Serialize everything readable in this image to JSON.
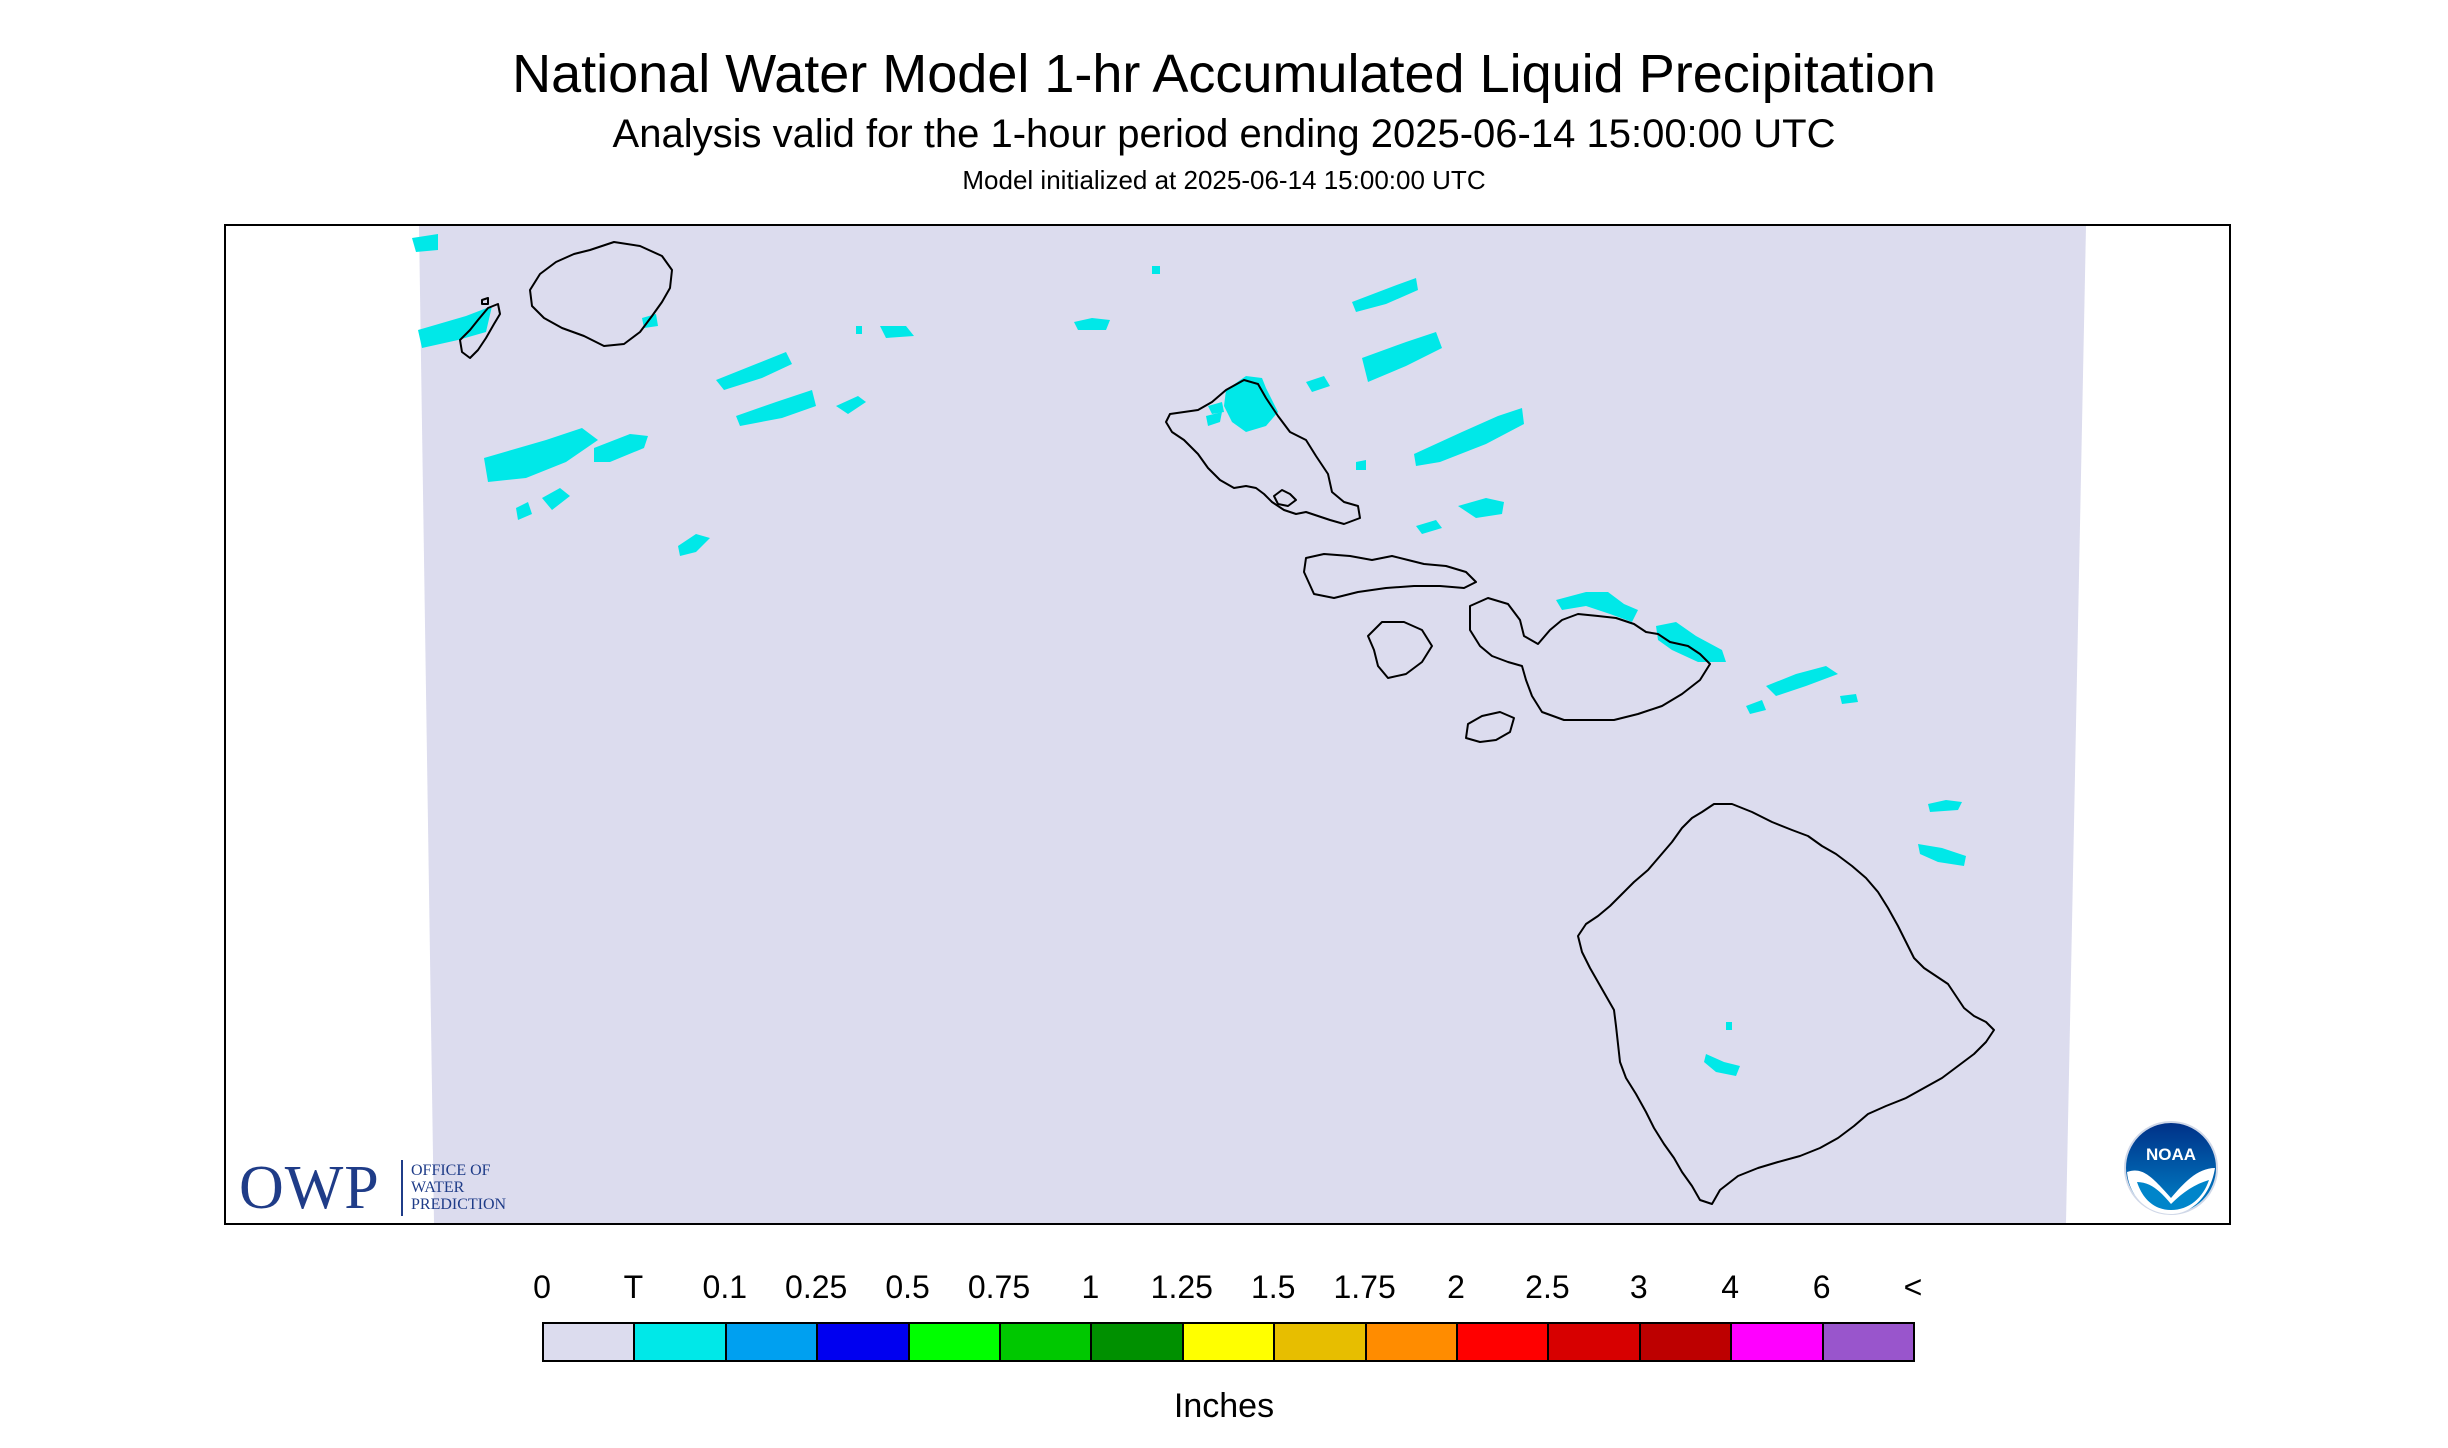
{
  "header": {
    "title": "National Water Model 1-hr Accumulated Liquid Precipitation",
    "subtitle": "Analysis valid for the 1-hour period ending 2025-06-14 15:00:00 UTC",
    "init_line": "Model initialized at 2025-06-14 15:00:00 UTC"
  },
  "logos": {
    "owp_text": "OWP",
    "owp_lines": [
      "OFFICE OF",
      "WATER",
      "PREDICTION"
    ],
    "noaa_text": "NOAA"
  },
  "colors": {
    "map_background": "#dcdcee",
    "coastline": "#000000",
    "trace_precip": "#00e8e8"
  },
  "legend": {
    "units": "Inches",
    "labels": [
      "0",
      "T",
      "0.1",
      "0.25",
      "0.5",
      "0.75",
      "1",
      "1.25",
      "1.5",
      "1.75",
      "2",
      "2.5",
      "3",
      "4",
      "6",
      "<"
    ],
    "colors": [
      "#dcdcee",
      "#00e8e8",
      "#00a0f0",
      "#0000f0",
      "#00ff00",
      "#00c800",
      "#009000",
      "#ffff00",
      "#e7be00",
      "#ff8c00",
      "#ff0000",
      "#d70000",
      "#bd0000",
      "#ff00ff",
      "#9955cc"
    ]
  }
}
